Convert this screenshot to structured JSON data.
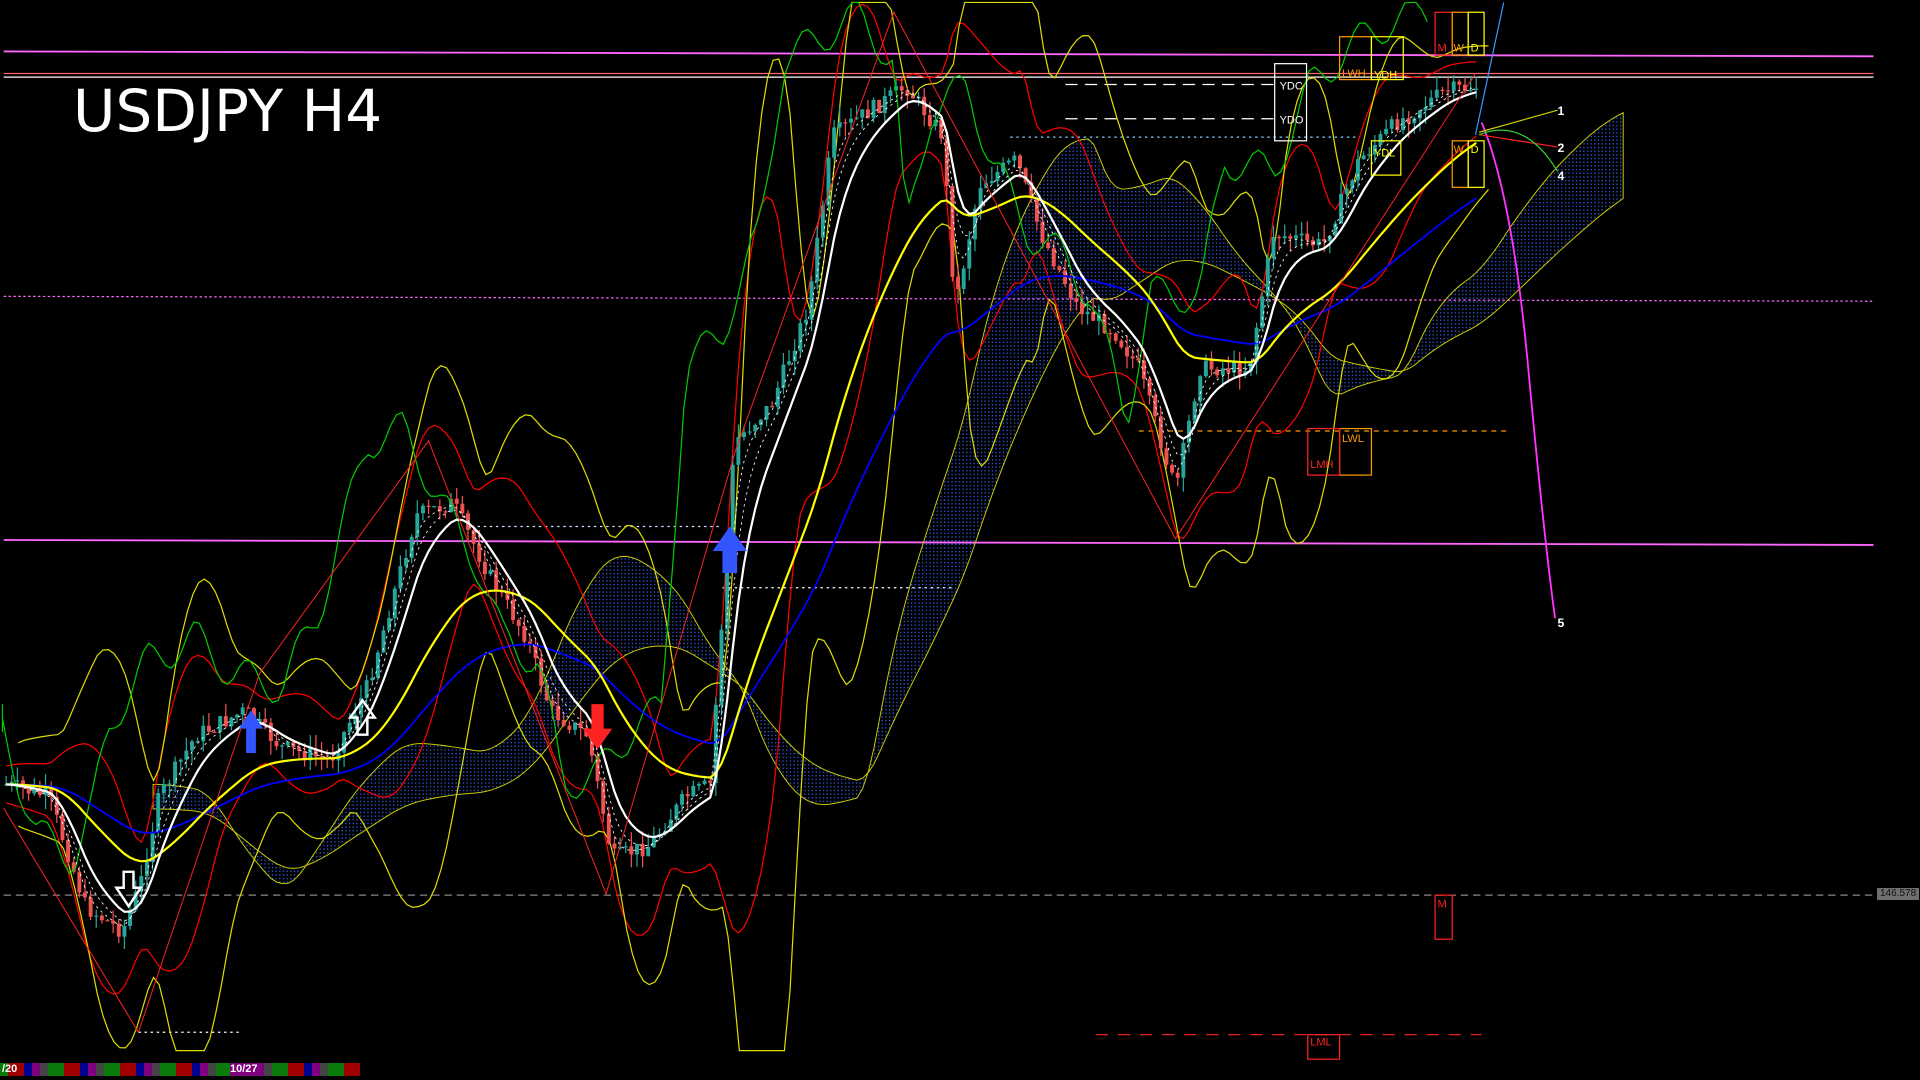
{
  "chart_data": {
    "type": "candlestick",
    "title": "USDJPY H4",
    "symbol": "USDJPY",
    "timeframe": "H4",
    "current_price": "146.578",
    "x_tick_labels": [
      "/20",
      "10/27"
    ],
    "closes_approx": [
      147.03,
      146.98,
      146.53,
      146.43,
      146.63,
      146.98,
      147.23,
      147.33,
      147.18,
      147.13,
      147.43,
      148.13,
      148.18,
      147.88,
      147.63,
      147.33,
      147.23,
      146.73,
      146.78,
      146.98,
      147.03,
      148.43,
      148.58,
      148.98,
      149.68,
      149.88,
      149.68,
      148.98,
      149.48,
      149.58,
      149.28,
      148.98,
      148.88,
      148.73,
      148.23,
      148.73,
      148.73,
      149.28,
      149.23,
      149.58,
      149.73,
      149.86,
      149.88
    ],
    "indicators": [
      "bollinger-bands",
      "ichimoku-cloud",
      "moving-averages",
      "chikou-span",
      "zigzag-projection"
    ],
    "level_labels": {
      "ydc": "YDC",
      "ydo": "YDO",
      "lwh": "LWH",
      "ydh": "YDH",
      "ydl": "YDL",
      "m_top": "M",
      "w_top": "W",
      "d_top": "D",
      "w_mid": "W",
      "d_mid": "D",
      "lwl": "LWL",
      "lmh": "LMH",
      "m_low": "M",
      "lml": "LML"
    },
    "projection_labels": [
      "1",
      "2",
      "4",
      "5"
    ],
    "colors": {
      "bull_candle": "#26a69a",
      "bear_candle": "#ef5350",
      "fast_ma": "#ffffff",
      "slow_ma": "#ffff00",
      "long_ma": "#0000ff",
      "bands": "#ff0000",
      "chikou": "#00cc00",
      "resistance_line": "#ff66ff",
      "cloud_bull": "#3366ff",
      "cloud_bear": "#ff2222"
    }
  }
}
